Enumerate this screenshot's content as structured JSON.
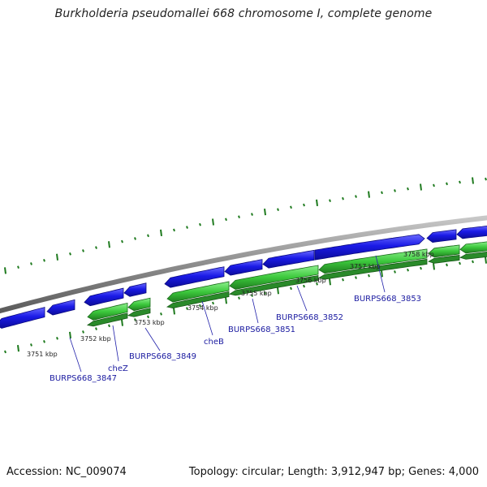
{
  "title": "Burkholderia pseudomallei 668 chromosome I, complete genome",
  "footer": {
    "accession": "Accession: NC_009074",
    "summary": "Topology: circular; Length: 3,912,947 bp; Genes: 4,000"
  },
  "colors": {
    "forward_cds": "#1a1ae6",
    "reverse_cds": "#3cc83c",
    "backbone": "#8c8c8c",
    "gc_ticks": "#1e7a1e",
    "label": "#1a1aa0"
  },
  "kbp_labels": [
    "3751 kbp",
    "3752 kbp",
    "3753 kbp",
    "3754 kbp",
    "3755 kbp",
    "3756 kbp",
    "3757 kbp",
    "3758 kbp"
  ],
  "gene_labels": [
    "BURPS668_3847",
    "cheZ",
    "BURPS668_3849",
    "cheB",
    "BURPS668_3851",
    "BURPS668_3852",
    "BURPS668_3853"
  ]
}
